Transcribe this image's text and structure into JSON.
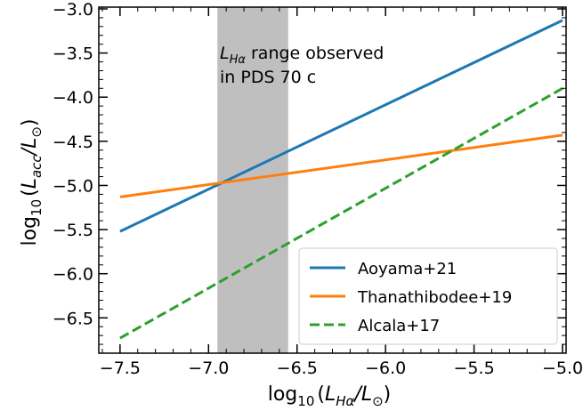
{
  "chart_data": {
    "type": "line",
    "xlim": [
      -7.62,
      -4.98
    ],
    "ylim": [
      -6.9,
      -2.98
    ],
    "xticks": [
      -7.5,
      -7.0,
      -6.5,
      -6.0,
      -5.5,
      -5.0
    ],
    "xtick_labels": [
      "−7.5",
      "−7.0",
      "−6.5",
      "−6.0",
      "−5.5",
      "−5.0"
    ],
    "yticks": [
      -6.5,
      -6.0,
      -5.5,
      -5.0,
      -4.5,
      -4.0,
      -3.5,
      -3.0
    ],
    "ytick_labels": [
      "−6.5",
      "−6.0",
      "−5.5",
      "−5.0",
      "−4.5",
      "−4.0",
      "−3.5",
      "−3.0"
    ],
    "xlabel": {
      "prefix": "log",
      "sub": "10",
      "open": "(",
      "L": "L",
      "sub1": "Hα",
      "slash": "/",
      "L2": "L",
      "sub2": "⊙",
      "close": ")"
    },
    "ylabel": {
      "prefix": "log",
      "sub": "10",
      "open": "(",
      "L": "L",
      "sub1": "acc",
      "slash": "/",
      "L2": "L",
      "sub2": "⊙",
      "close": ")"
    },
    "shaded_region": {
      "x_from": -6.95,
      "x_to": -6.55,
      "color": "#bfbfbf"
    },
    "annotation": {
      "line1_L": "L",
      "line1_sub": "Hα",
      "line1_rest": " range observed",
      "line2": "in PDS 70 c"
    },
    "series": [
      {
        "name": "Aoyama+21",
        "color": "#1f77b4",
        "dash": "solid",
        "x": [
          -7.5,
          -5.0
        ],
        "y": [
          -5.52,
          -3.13
        ]
      },
      {
        "name": "Thanathibodee+19",
        "color": "#ff7f0e",
        "dash": "solid",
        "x": [
          -7.5,
          -5.0
        ],
        "y": [
          -5.13,
          -4.43
        ]
      },
      {
        "name": "Alcala+17",
        "color": "#2ca02c",
        "dash": "dashed",
        "x": [
          -7.5,
          -5.0
        ],
        "y": [
          -6.73,
          -3.9
        ]
      }
    ],
    "legend": {
      "placement": "lower-right"
    },
    "grid": false
  }
}
